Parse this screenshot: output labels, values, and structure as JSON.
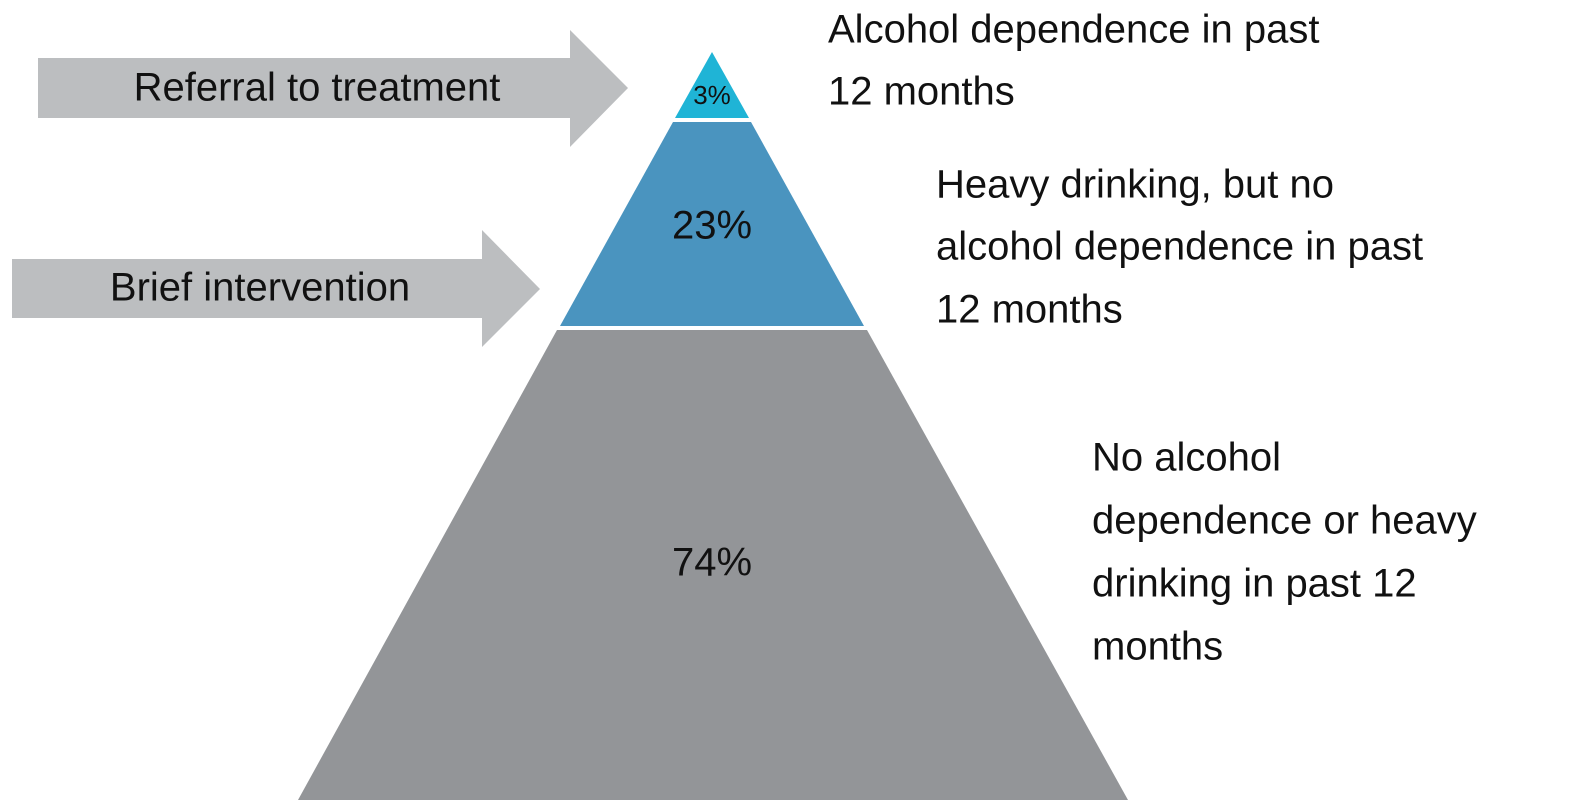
{
  "layers": [
    {
      "value_label": "3%",
      "description": [
        "Alcohol dependence in past",
        "12 months"
      ]
    },
    {
      "value_label": "23%",
      "description": [
        "Heavy drinking, but no",
        "alcohol dependence in past",
        "12 months"
      ]
    },
    {
      "value_label": "74%",
      "description": [
        "No alcohol",
        "dependence or heavy",
        "drinking in past 12",
        "months"
      ]
    }
  ],
  "arrows": [
    {
      "label": "Referral to treatment"
    },
    {
      "label": "Brief intervention"
    }
  ]
}
